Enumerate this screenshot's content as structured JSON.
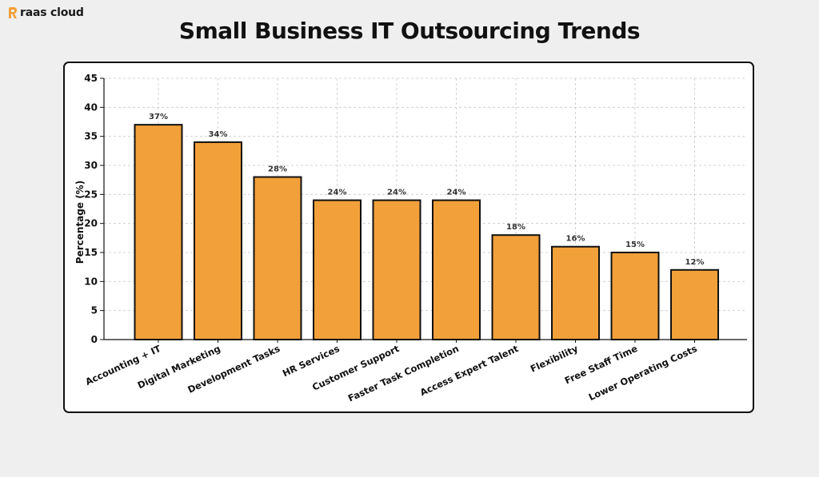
{
  "brand": {
    "name": "raas cloud",
    "icon": "raas-logo-icon",
    "accent": "#f2a03a"
  },
  "title": "Small Business IT Outsourcing Trends",
  "chart_data": {
    "type": "bar",
    "title": "Small Business IT Outsourcing Trends",
    "xlabel": "",
    "ylabel": "Percentage (%)",
    "ylim": [
      0,
      45
    ],
    "yticks": [
      0,
      5,
      10,
      15,
      20,
      25,
      30,
      35,
      40,
      45
    ],
    "grid": true,
    "categories": [
      "Accounting + IT",
      "Digital Marketing",
      "Development Tasks",
      "HR Services",
      "Customer Support",
      "Faster Task Completion",
      "Access Expert Talent",
      "Flexibility",
      "Free Staff Time",
      "Lower Operating Costs"
    ],
    "values": [
      37,
      34,
      28,
      24,
      24,
      24,
      18,
      16,
      15,
      12
    ],
    "value_labels": [
      "37%",
      "34%",
      "28%",
      "24%",
      "24%",
      "24%",
      "18%",
      "16%",
      "15%",
      "12%"
    ],
    "bar_color": "#f2a03a",
    "bar_edge_color": "#111111"
  }
}
